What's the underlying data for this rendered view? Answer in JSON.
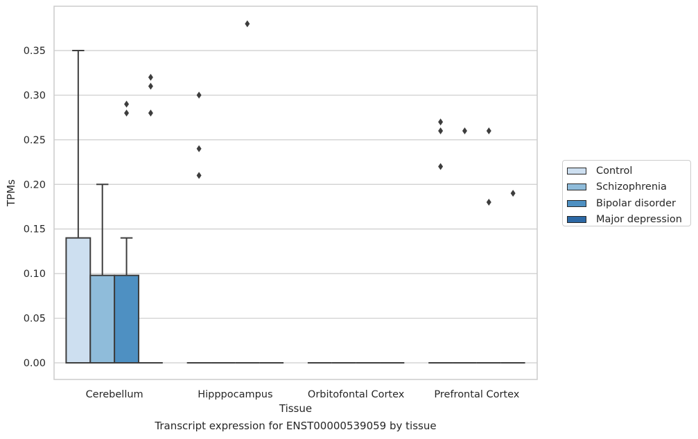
{
  "caption": "Transcript expression for ENST00000539059 by tissue",
  "colors": {
    "series": [
      "#cddff0",
      "#8fbcda",
      "#4e90c2",
      "#2c68a5"
    ],
    "grid": "#cccccc",
    "line": "#3d3d3d",
    "text": "#262626"
  },
  "chart_data": {
    "type": "box",
    "title": "",
    "xlabel": "Tissue",
    "ylabel": "TPMs",
    "ylim": [
      -0.018,
      0.39
    ],
    "yticks": [
      0.0,
      0.05,
      0.1,
      0.15,
      0.2,
      0.25,
      0.3,
      0.35
    ],
    "ytick_labels": [
      "0.00",
      "0.05",
      "0.10",
      "0.15",
      "0.20",
      "0.25",
      "0.30",
      "0.35"
    ],
    "grid": "horizontal",
    "legend_position": "right-outside",
    "categories": [
      "Cerebellum",
      "Hipppocampus",
      "Orbitofontal Cortex",
      "Prefrontal Cortex"
    ],
    "series": [
      {
        "name": "Control",
        "boxes": [
          {
            "q1": 0.0,
            "median": 0.0,
            "q3": 0.14,
            "whisker_low": 0.0,
            "whisker_high": 0.35,
            "outliers": []
          },
          {
            "q1": 0.0,
            "median": 0.0,
            "q3": 0.0,
            "whisker_low": 0.0,
            "whisker_high": 0.0,
            "outliers": [
              0.3,
              0.24,
              0.21
            ]
          },
          {
            "q1": 0.0,
            "median": 0.0,
            "q3": 0.0,
            "whisker_low": 0.0,
            "whisker_high": 0.0,
            "outliers": []
          },
          {
            "q1": 0.0,
            "median": 0.0,
            "q3": 0.0,
            "whisker_low": 0.0,
            "whisker_high": 0.0,
            "outliers": [
              0.27,
              0.26,
              0.22
            ]
          }
        ]
      },
      {
        "name": "Schizophrenia",
        "boxes": [
          {
            "q1": 0.0,
            "median": 0.0,
            "q3": 0.098,
            "whisker_low": 0.0,
            "whisker_high": 0.2,
            "outliers": []
          },
          {
            "q1": 0.0,
            "median": 0.0,
            "q3": 0.0,
            "whisker_low": 0.0,
            "whisker_high": 0.0,
            "outliers": []
          },
          {
            "q1": 0.0,
            "median": 0.0,
            "q3": 0.0,
            "whisker_low": 0.0,
            "whisker_high": 0.0,
            "outliers": []
          },
          {
            "q1": 0.0,
            "median": 0.0,
            "q3": 0.0,
            "whisker_low": 0.0,
            "whisker_high": 0.0,
            "outliers": [
              0.26
            ]
          }
        ]
      },
      {
        "name": "Bipolar disorder",
        "boxes": [
          {
            "q1": 0.0,
            "median": 0.0,
            "q3": 0.098,
            "whisker_low": 0.0,
            "whisker_high": 0.14,
            "outliers": [
              0.29,
              0.28
            ]
          },
          {
            "q1": 0.0,
            "median": 0.0,
            "q3": 0.0,
            "whisker_low": 0.0,
            "whisker_high": 0.0,
            "outliers": [
              0.38
            ]
          },
          {
            "q1": 0.0,
            "median": 0.0,
            "q3": 0.0,
            "whisker_low": 0.0,
            "whisker_high": 0.0,
            "outliers": []
          },
          {
            "q1": 0.0,
            "median": 0.0,
            "q3": 0.0,
            "whisker_low": 0.0,
            "whisker_high": 0.0,
            "outliers": [
              0.26,
              0.18
            ]
          }
        ]
      },
      {
        "name": "Major depression",
        "boxes": [
          {
            "q1": 0.0,
            "median": 0.0,
            "q3": 0.0,
            "whisker_low": 0.0,
            "whisker_high": 0.0,
            "outliers": [
              0.32,
              0.31,
              0.28
            ]
          },
          {
            "q1": 0.0,
            "median": 0.0,
            "q3": 0.0,
            "whisker_low": 0.0,
            "whisker_high": 0.0,
            "outliers": []
          },
          {
            "q1": 0.0,
            "median": 0.0,
            "q3": 0.0,
            "whisker_low": 0.0,
            "whisker_high": 0.0,
            "outliers": []
          },
          {
            "q1": 0.0,
            "median": 0.0,
            "q3": 0.0,
            "whisker_low": 0.0,
            "whisker_high": 0.0,
            "outliers": [
              0.19
            ]
          }
        ]
      }
    ]
  }
}
